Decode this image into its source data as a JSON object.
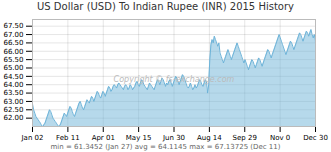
{
  "chart_data": {
    "type": "area",
    "title": "US Dollar (USD) To Indian Rupee (INR) 2015 History",
    "annotations": [
      "Copyright © fs-exchange.com",
      "min = 61.3452 (Jan 27)   avg = 64.1145   max = 67.13725 (Dec 11)"
    ],
    "color": "#6db3d8",
    "grid": true,
    "xlim": [
      0,
      249
    ],
    "xticks": [
      {
        "value": 0,
        "label": "Jan 02"
      },
      {
        "value": 31.125,
        "label": "Feb 11"
      },
      {
        "value": 62.25,
        "label": "Apr 01"
      },
      {
        "value": 93.375,
        "label": "May 15"
      },
      {
        "value": 124.5,
        "label": "Jun 30"
      },
      {
        "value": 155.625,
        "label": "Aug 14"
      },
      {
        "value": 186.75,
        "label": "Sep 29"
      },
      {
        "value": 217.875,
        "label": "Nov 0"
      },
      {
        "value": 249,
        "label": "Dec 30"
      }
    ],
    "ylim": [
      61.5,
      67.9
    ],
    "yticks": [
      {
        "value": 62.0,
        "label": "62.00"
      },
      {
        "value": 62.5,
        "label": "62.50"
      },
      {
        "value": 63.0,
        "label": "63.00"
      },
      {
        "value": 63.5,
        "label": "63.50"
      },
      {
        "value": 64.0,
        "label": "64.00"
      },
      {
        "value": 64.5,
        "label": "64.50"
      },
      {
        "value": 65.0,
        "label": "65.00"
      },
      {
        "value": 65.5,
        "label": "65.50"
      },
      {
        "value": 66.0,
        "label": "66.00"
      },
      {
        "value": 66.5,
        "label": "66.50"
      },
      {
        "value": 67.0,
        "label": "67.00"
      },
      {
        "value": 67.5,
        "label": "67.50"
      }
    ],
    "values": [
      62.85,
      62.5,
      62.3,
      62.1,
      62.0,
      61.9,
      61.8,
      61.7,
      61.55,
      61.5,
      61.6,
      61.7,
      61.9,
      62.1,
      62.3,
      62.5,
      62.4,
      62.2,
      62.0,
      61.9,
      61.8,
      61.7,
      61.6,
      61.5,
      61.55,
      61.7,
      61.9,
      62.1,
      62.3,
      62.2,
      62.1,
      62.3,
      62.5,
      62.7,
      62.6,
      62.4,
      62.2,
      62.1,
      62.3,
      62.5,
      62.7,
      62.9,
      63.0,
      62.8,
      62.6,
      62.5,
      62.7,
      62.9,
      63.1,
      63.0,
      62.9,
      63.1,
      63.3,
      63.2,
      63.0,
      63.2,
      63.4,
      63.6,
      63.5,
      63.3,
      63.2,
      63.4,
      63.6,
      63.5,
      63.3,
      63.5,
      63.7,
      63.9,
      63.8,
      63.6,
      63.7,
      63.9,
      64.0,
      63.9,
      63.8,
      64.0,
      64.1,
      64.0,
      63.9,
      63.8,
      63.7,
      63.9,
      64.0,
      63.9,
      63.7,
      63.8,
      64.0,
      63.9,
      63.7,
      63.8,
      63.9,
      64.1,
      64.2,
      64.0,
      63.9,
      64.1,
      64.3,
      64.2,
      64.0,
      63.9,
      63.8,
      63.7,
      63.9,
      64.1,
      64.0,
      63.9,
      63.8,
      63.7,
      63.9,
      64.1,
      64.3,
      64.2,
      64.0,
      64.2,
      64.4,
      64.3,
      64.1,
      63.9,
      64.1,
      64.0,
      64.2,
      64.3,
      64.1,
      63.9,
      64.1,
      64.3,
      64.5,
      64.4,
      64.2,
      64.0,
      64.2,
      64.4,
      64.6,
      64.5,
      64.3,
      64.1,
      63.9,
      63.8,
      63.9,
      64.1,
      63.9,
      63.7,
      63.8,
      64.0,
      63.8,
      63.9,
      64.1,
      64.3,
      64.2,
      64.0,
      63.9,
      64.1,
      64.3,
      64.2,
      63.5,
      64.0,
      65.5,
      66.4,
      66.7,
      66.5,
      66.9,
      66.7,
      66.5,
      66.3,
      66.5,
      65.9,
      65.7,
      65.5,
      65.3,
      65.5,
      65.7,
      65.9,
      66.1,
      65.9,
      65.7,
      65.5,
      65.7,
      65.9,
      66.1,
      66.3,
      66.5,
      66.3,
      66.1,
      65.9,
      65.7,
      65.5,
      65.3,
      65.5,
      65.3,
      65.1,
      64.9,
      65.1,
      65.3,
      65.5,
      65.4,
      65.2,
      65.0,
      65.2,
      65.4,
      65.6,
      65.5,
      65.3,
      65.1,
      65.3,
      65.5,
      65.7,
      65.9,
      66.1,
      66.0,
      65.8,
      65.6,
      65.8,
      66.0,
      66.2,
      66.4,
      66.6,
      66.8,
      67.0,
      66.8,
      66.6,
      66.4,
      66.2,
      66.0,
      65.8,
      66.0,
      66.2,
      66.4,
      66.6,
      66.5,
      66.3,
      66.1,
      66.3,
      66.5,
      66.7,
      66.9,
      67.1,
      67.0,
      66.8,
      66.6,
      66.8,
      67.0,
      67.2,
      67.1,
      66.9,
      67.1,
      67.3,
      67.0,
      66.8,
      67.0,
      66.5
    ]
  }
}
